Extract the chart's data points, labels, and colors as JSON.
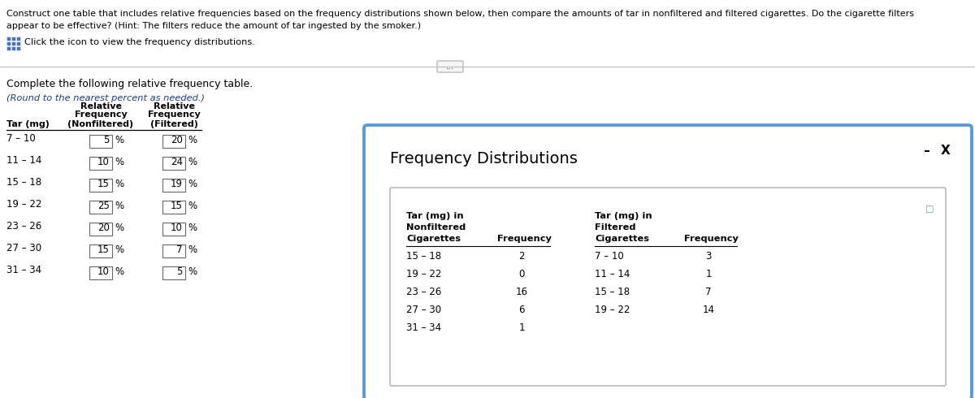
{
  "title_line1": "Construct one table that includes relative frequencies based on the frequency distributions shown below, then compare the amounts of tar in nonfiltered and filtered cigarettes. Do the cigarette filters",
  "title_line2": "appear to be effective? (Hint: The filters reduce the amount of tar ingested by the smoker.)",
  "click_text": "Click the icon to view the frequency distributions.",
  "complete_text": "Complete the following relative frequency table.",
  "round_text": "(Round to the nearest percent as needed.)",
  "tar_ranges": [
    "7 – 10",
    "11 – 14",
    "15 – 18",
    "19 – 22",
    "23 – 26",
    "27 – 30",
    "31 – 34"
  ],
  "nonfiltered_pct": [
    "5",
    "10",
    "15",
    "25",
    "20",
    "15",
    "10"
  ],
  "filtered_pct": [
    "20",
    "24",
    "19",
    "15",
    "10",
    "7",
    "5"
  ],
  "freq_dist_title": "Frequency Distributions",
  "nf_rows": [
    [
      "15 – 18",
      "2"
    ],
    [
      "19 – 22",
      "0"
    ],
    [
      "23 – 26",
      "16"
    ],
    [
      "27 – 30",
      "6"
    ],
    [
      "31 – 34",
      "1"
    ]
  ],
  "f_rows": [
    [
      "7 – 10",
      "3"
    ],
    [
      "11 – 14",
      "1"
    ],
    [
      "15 – 18",
      "7"
    ],
    [
      "19 – 22",
      "14"
    ]
  ],
  "bg_color": "#ffffff",
  "text_color": "#000000",
  "round_color": "#1a3a8a",
  "box_border_color": "#5b9bd5",
  "dot_btn_color": "#666666"
}
